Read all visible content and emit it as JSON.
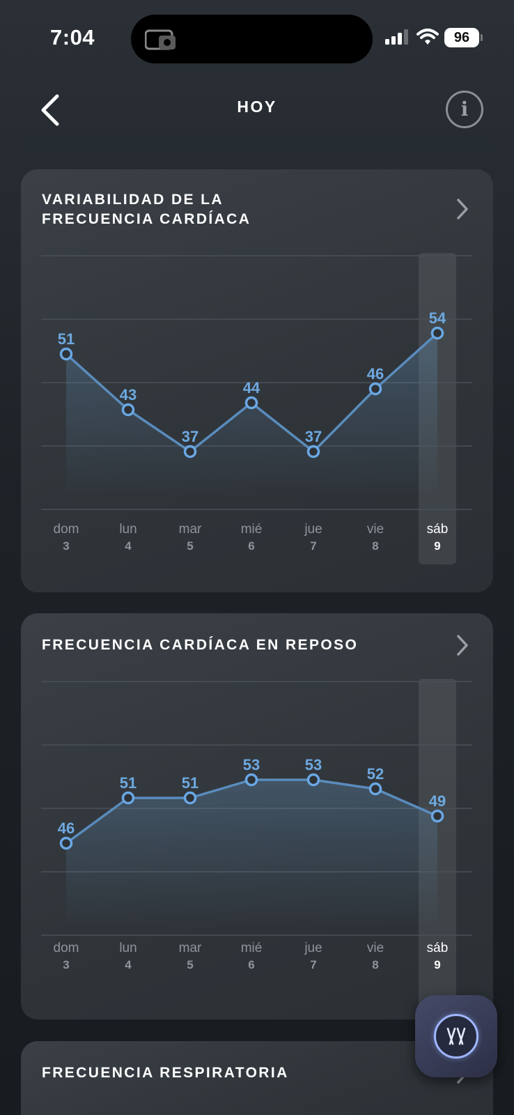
{
  "status_bar": {
    "time": "7:04",
    "battery": "96"
  },
  "nav": {
    "title": "HOY"
  },
  "icons": {
    "back": "chevron-left-icon",
    "info": "info-icon",
    "chevron": "chevron-right-icon",
    "assistant": "whoop-coach-icon"
  },
  "cards": [
    {
      "title_line1": "VARIABILIDAD DE LA",
      "title_line2": "FRECUENCIA CARDÍACA",
      "chart_data": {
        "type": "line",
        "categories": [
          "dom",
          "lun",
          "mar",
          "mié",
          "jue",
          "vie",
          "sáb"
        ],
        "day_numbers": [
          "3",
          "4",
          "5",
          "6",
          "7",
          "8",
          "9"
        ],
        "values": [
          51,
          43,
          37,
          44,
          37,
          46,
          54
        ],
        "highlight_index": 6,
        "grid": true
      }
    },
    {
      "title_line1": "FRECUENCIA CARDÍACA EN REPOSO",
      "title_line2": "",
      "chart_data": {
        "type": "line",
        "categories": [
          "dom",
          "lun",
          "mar",
          "mié",
          "jue",
          "vie",
          "sáb"
        ],
        "day_numbers": [
          "3",
          "4",
          "5",
          "6",
          "7",
          "8",
          "9"
        ],
        "values": [
          46,
          51,
          51,
          53,
          53,
          52,
          49
        ],
        "highlight_index": 6,
        "grid": true
      }
    },
    {
      "title_line1": "FRECUENCIA RESPIRATORIA",
      "title_line2": ""
    }
  ],
  "colors": {
    "line": "#5a8cbd",
    "point": "#6aa8e6",
    "value_label": "#6ea9e0",
    "day_label": "#8e949a",
    "highlight_label": "#ffffff",
    "grid": "#4a5057"
  }
}
